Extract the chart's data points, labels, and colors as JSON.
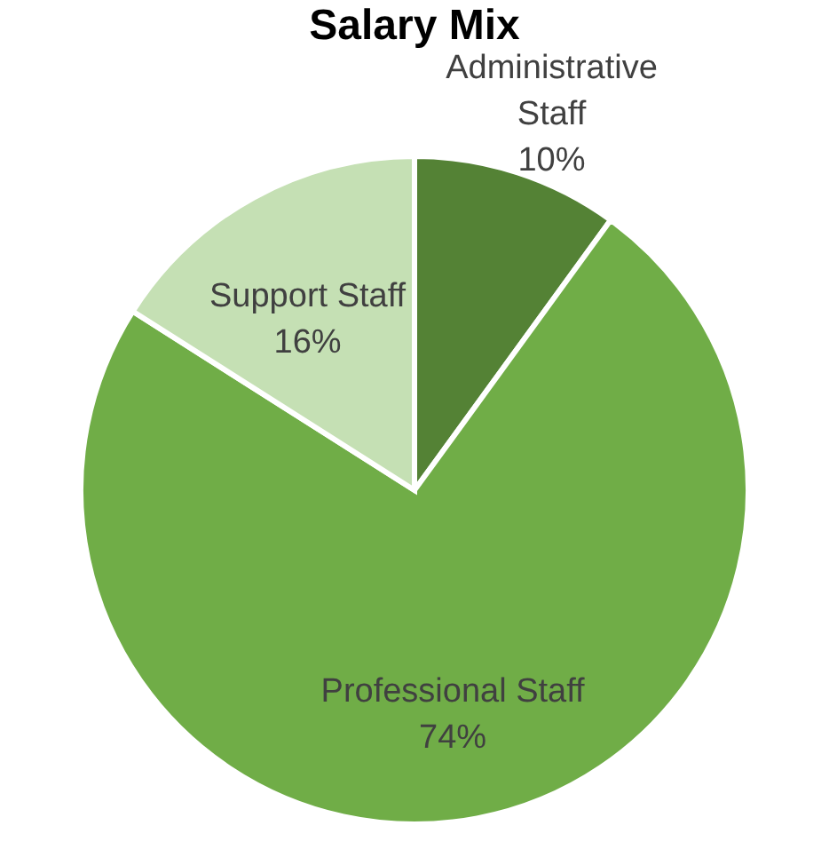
{
  "chart_data": {
    "type": "pie",
    "title": "Salary Mix",
    "categories": [
      "Administrative Staff",
      "Professional Staff",
      "Support Staff"
    ],
    "values": [
      10,
      74,
      16
    ],
    "colors": [
      "#548235",
      "#70ad47",
      "#c5e0b4"
    ],
    "value_labels": [
      "10%",
      "74%",
      "16%"
    ],
    "legend": false
  }
}
